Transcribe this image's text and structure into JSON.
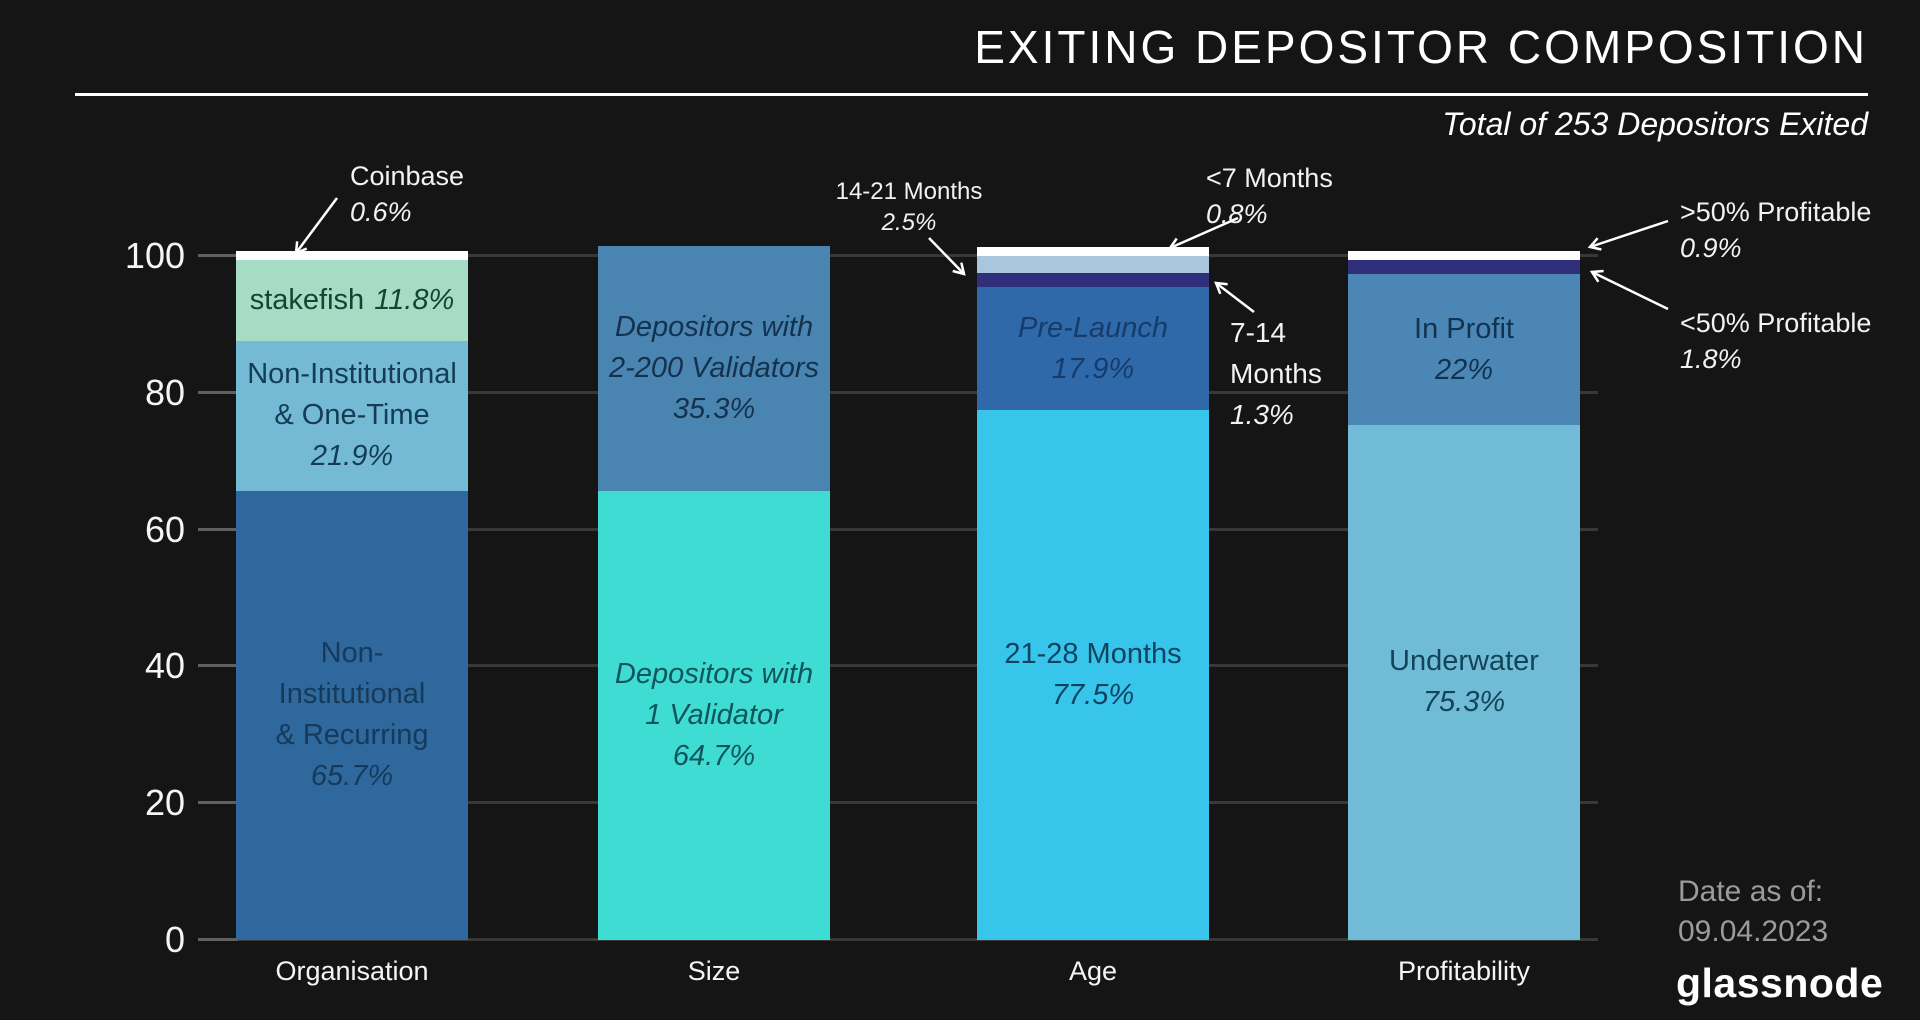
{
  "title": "EXITING DEPOSITOR COMPOSITION",
  "subtitle": "Total of 253 Depositors Exited",
  "footer": {
    "date_label": "Date as of:",
    "date_value": "09.04.2023",
    "brand": "glassnode"
  },
  "colors": {
    "background": "#151515",
    "title_text": "#ffffff",
    "divider": "#ffffff",
    "axis_text": "#f5f5f5",
    "gridline": "#383838",
    "tick": "#606060",
    "annotation_text": "#f2f2f2",
    "arrow": "#ffffff",
    "date_text": "#9b9b9b",
    "brand_text": "#ffffff"
  },
  "y_axis": {
    "ticks": [
      "100",
      "80",
      "60",
      "40",
      "20",
      "0"
    ]
  },
  "chart_data": {
    "type": "bar",
    "stacked": true,
    "unit": "percent",
    "ylim": [
      0,
      100
    ],
    "grid": true,
    "total_depositors": 253,
    "categories": [
      "Organisation",
      "Size",
      "Age",
      "Profitability"
    ],
    "bars": [
      {
        "category": "Organisation",
        "segments": [
          {
            "label": "Non-Institutional & Recurring",
            "value": 65.7,
            "pct_label": "65.7%",
            "lines": [
              "Non-",
              "Institutional",
              "& Recurring"
            ],
            "color": "#2e689c",
            "text_color": "#173a5a"
          },
          {
            "label": "Non-Institutional & One-Time",
            "value": 21.9,
            "pct_label": "21.9%",
            "lines": [
              "Non-Institutional",
              "& One-Time"
            ],
            "color": "#74bad4",
            "text_color": "#143c54"
          },
          {
            "label": "stakefish",
            "value": 11.8,
            "pct_label": "11.8%",
            "lines": [
              "stakefish"
            ],
            "color": "#a6dcc3",
            "text_color": "#154437"
          },
          {
            "label": "Coinbase",
            "value": 0.6,
            "pct_label": "0.6%",
            "color": "#ffffff"
          }
        ]
      },
      {
        "category": "Size",
        "segments": [
          {
            "label": "Depositors with 1 Validator",
            "value": 64.7,
            "pct_label": "64.7%",
            "lines": [
              "Depositors with",
              "1 Validator"
            ],
            "color": "#3edcd3",
            "text_color": "#10555c"
          },
          {
            "label": "Depositors with 2-200 Validators",
            "value": 35.3,
            "pct_label": "35.3%",
            "lines": [
              "Depositors with",
              "2-200 Validators"
            ],
            "color": "#4a85b2",
            "text_color": "#14324e"
          }
        ]
      },
      {
        "category": "Age",
        "segments": [
          {
            "label": "21-28 Months",
            "value": 77.5,
            "pct_label": "77.5%",
            "lines": [
              "21-28 Months"
            ],
            "color": "#38c5ec",
            "text_color": "#0f4461"
          },
          {
            "label": "Pre-Launch",
            "value": 17.9,
            "pct_label": "17.9%",
            "lines": [
              "Pre-Launch"
            ],
            "color": "#3069aa",
            "text_color": "#153c6b"
          },
          {
            "label": "7-14 Months",
            "value": 1.3,
            "pct_label": "1.3%",
            "color": "#302f7c"
          },
          {
            "label": "14-21 Months",
            "value": 2.5,
            "pct_label": "2.5%",
            "color": "#a9c6dc"
          },
          {
            "label": "<7 Months",
            "value": 0.8,
            "pct_label": "0.8%",
            "color": "#ffffff"
          }
        ]
      },
      {
        "category": "Profitability",
        "segments": [
          {
            "label": "Underwater",
            "value": 75.3,
            "pct_label": "75.3%",
            "lines": [
              "Underwater"
            ],
            "color": "#70bcd7",
            "text_color": "#134459"
          },
          {
            "label": "In Profit",
            "value": 22,
            "pct_label": "22%",
            "lines": [
              "In Profit"
            ],
            "color": "#4c86b4",
            "text_color": "#123350"
          },
          {
            "label": "<50% Profitable",
            "value": 1.8,
            "pct_label": "1.8%",
            "color": "#302f7c"
          },
          {
            "label": ">50% Profitable",
            "value": 0.9,
            "pct_label": "0.9%",
            "color": "#ffffff"
          }
        ]
      }
    ]
  },
  "annotations": [
    {
      "text": "Coinbase",
      "pct": "0.6%"
    },
    {
      "text": "14-21 Months",
      "pct": "2.5%"
    },
    {
      "text": "<7 Months",
      "pct": "0.8%"
    },
    {
      "lines": [
        "7-14",
        "Months"
      ],
      "pct": "1.3%"
    },
    {
      "text": ">50% Profitable",
      "pct": "0.9%"
    },
    {
      "text": "<50% Profitable",
      "pct": "1.8%"
    }
  ]
}
